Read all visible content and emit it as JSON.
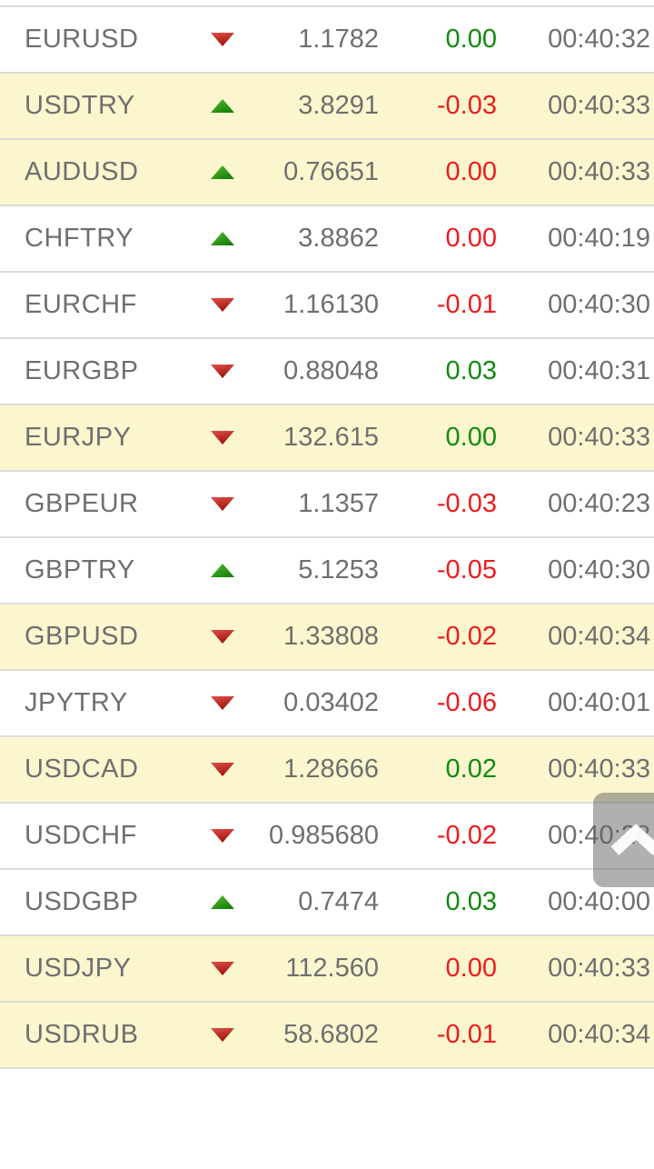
{
  "quotes": {
    "rows": [
      {
        "symbol": "EURUSD",
        "direction": "down",
        "rate": "1.1782",
        "change": "0.00",
        "change_color": "green",
        "time": "00:40:32",
        "highlighted": false
      },
      {
        "symbol": "USDTRY",
        "direction": "up",
        "rate": "3.8291",
        "change": "-0.03",
        "change_color": "red",
        "time": "00:40:33",
        "highlighted": true
      },
      {
        "symbol": "AUDUSD",
        "direction": "up",
        "rate": "0.76651",
        "change": "0.00",
        "change_color": "red",
        "time": "00:40:33",
        "highlighted": true
      },
      {
        "symbol": "CHFTRY",
        "direction": "up",
        "rate": "3.8862",
        "change": "0.00",
        "change_color": "red",
        "time": "00:40:19",
        "highlighted": false
      },
      {
        "symbol": "EURCHF",
        "direction": "down",
        "rate": "1.16130",
        "change": "-0.01",
        "change_color": "red",
        "time": "00:40:30",
        "highlighted": false
      },
      {
        "symbol": "EURGBP",
        "direction": "down",
        "rate": "0.88048",
        "change": "0.03",
        "change_color": "green",
        "time": "00:40:31",
        "highlighted": false
      },
      {
        "symbol": "EURJPY",
        "direction": "down",
        "rate": "132.615",
        "change": "0.00",
        "change_color": "green",
        "time": "00:40:33",
        "highlighted": true
      },
      {
        "symbol": "GBPEUR",
        "direction": "down",
        "rate": "1.1357",
        "change": "-0.03",
        "change_color": "red",
        "time": "00:40:23",
        "highlighted": false
      },
      {
        "symbol": "GBPTRY",
        "direction": "up",
        "rate": "5.1253",
        "change": "-0.05",
        "change_color": "red",
        "time": "00:40:30",
        "highlighted": false
      },
      {
        "symbol": "GBPUSD",
        "direction": "down",
        "rate": "1.33808",
        "change": "-0.02",
        "change_color": "red",
        "time": "00:40:34",
        "highlighted": true
      },
      {
        "symbol": "JPYTRY",
        "direction": "down",
        "rate": "0.03402",
        "change": "-0.06",
        "change_color": "red",
        "time": "00:40:01",
        "highlighted": false
      },
      {
        "symbol": "USDCAD",
        "direction": "down",
        "rate": "1.28666",
        "change": "0.02",
        "change_color": "green",
        "time": "00:40:33",
        "highlighted": true
      },
      {
        "symbol": "USDCHF",
        "direction": "down",
        "rate": "0.985680",
        "change": "-0.02",
        "change_color": "red",
        "time": "00:40:28",
        "highlighted": false
      },
      {
        "symbol": "USDGBP",
        "direction": "up",
        "rate": "0.7474",
        "change": "0.03",
        "change_color": "green",
        "time": "00:40:00",
        "highlighted": false
      },
      {
        "symbol": "USDJPY",
        "direction": "down",
        "rate": "112.560",
        "change": "0.00",
        "change_color": "red",
        "time": "00:40:33",
        "highlighted": true
      },
      {
        "symbol": "USDRUB",
        "direction": "down",
        "rate": "58.6802",
        "change": "-0.01",
        "change_color": "red",
        "time": "00:40:34",
        "highlighted": true
      }
    ]
  },
  "colors": {
    "positive_text": "#128a12",
    "negative_text": "#ec1c1c",
    "row_highlight": "#fbf6ce",
    "row_default": "#ffffff",
    "divider": "#dcdcdc",
    "text": "#6f6f6f",
    "arrow_up_light": "#55bb33",
    "arrow_up_dark": "#157f08",
    "arrow_down_light": "#e0504a",
    "arrow_down_dark": "#9e150a",
    "scroll_button_bg": "rgba(97,97,97,0.5)"
  },
  "scroll_top_button": {
    "icon": "chevron-up"
  }
}
